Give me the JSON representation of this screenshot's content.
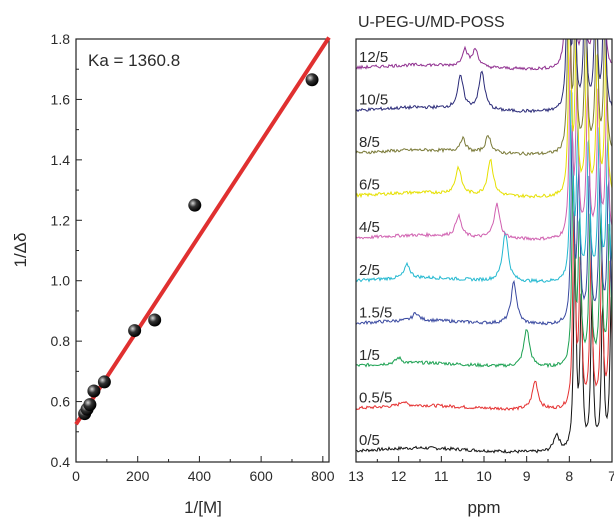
{
  "chart_data": [
    {
      "type": "scatter",
      "annotation": "Ka = 1360.8",
      "xlabel": "1/[M]",
      "ylabel": "1/Δδ",
      "xlim": [
        0,
        820
      ],
      "ylim": [
        0.4,
        1.8
      ],
      "x_ticks": [
        "0",
        "200",
        "400",
        "600",
        "800"
      ],
      "y_ticks": [
        "0.4",
        "0.6",
        "0.8",
        "1.0",
        "1.2",
        "1.4",
        "1.6",
        "1.8"
      ],
      "points": [
        {
          "x": 28,
          "y": 0.56
        },
        {
          "x": 36,
          "y": 0.575
        },
        {
          "x": 45,
          "y": 0.59
        },
        {
          "x": 58,
          "y": 0.635
        },
        {
          "x": 92,
          "y": 0.665
        },
        {
          "x": 190,
          "y": 0.835
        },
        {
          "x": 255,
          "y": 0.87
        },
        {
          "x": 385,
          "y": 1.25
        },
        {
          "x": 765,
          "y": 1.665
        }
      ],
      "fit_line": {
        "x": [
          0,
          820
        ],
        "y": [
          0.525,
          1.805
        ],
        "color": "#e03030"
      },
      "marker_color": "#000000",
      "grid": false
    },
    {
      "type": "line",
      "title": "U-PEG-U/MD-POSS",
      "xlabel": "ppm",
      "x_reversed": true,
      "xlim": [
        7,
        13
      ],
      "x_ticks": [
        "13",
        "12",
        "11",
        "10",
        "9",
        "8",
        "7"
      ],
      "series": [
        {
          "name": "0/5",
          "color": "#111111",
          "peaks": [
            {
              "ppm": 8.3,
              "h": 0.45
            }
          ]
        },
        {
          "name": "0.5/5",
          "color": "#e53030",
          "peaks": [
            {
              "ppm": 8.8,
              "h": 0.75
            },
            {
              "ppm": 11.9,
              "h": 0.12
            }
          ]
        },
        {
          "name": "1/5",
          "color": "#1aa050",
          "peaks": [
            {
              "ppm": 9.0,
              "h": 1.0
            },
            {
              "ppm": 12.0,
              "h": 0.15
            }
          ]
        },
        {
          "name": "1.5/5",
          "color": "#3848a0",
          "peaks": [
            {
              "ppm": 9.3,
              "h": 1.1
            },
            {
              "ppm": 11.6,
              "h": 0.2
            }
          ]
        },
        {
          "name": "2/5",
          "color": "#22b8d0",
          "peaks": [
            {
              "ppm": 9.5,
              "h": 1.3
            },
            {
              "ppm": 11.8,
              "h": 0.35
            }
          ]
        },
        {
          "name": "4/5",
          "color": "#d060b0",
          "peaks": [
            {
              "ppm": 9.7,
              "h": 0.9
            },
            {
              "ppm": 10.6,
              "h": 0.55
            }
          ]
        },
        {
          "name": "6/5",
          "color": "#e6e000",
          "peaks": [
            {
              "ppm": 9.85,
              "h": 0.95
            },
            {
              "ppm": 10.6,
              "h": 0.7
            }
          ]
        },
        {
          "name": "8/5",
          "color": "#7a7a38",
          "peaks": [
            {
              "ppm": 9.9,
              "h": 0.45
            },
            {
              "ppm": 10.5,
              "h": 0.35
            }
          ]
        },
        {
          "name": "10/5",
          "color": "#2a2a78",
          "peaks": [
            {
              "ppm": 10.05,
              "h": 1.0
            },
            {
              "ppm": 10.55,
              "h": 0.85
            }
          ]
        },
        {
          "name": "12/5",
          "color": "#903090",
          "peaks": [
            {
              "ppm": 10.2,
              "h": 0.45
            },
            {
              "ppm": 10.45,
              "h": 0.45
            }
          ]
        }
      ]
    }
  ]
}
